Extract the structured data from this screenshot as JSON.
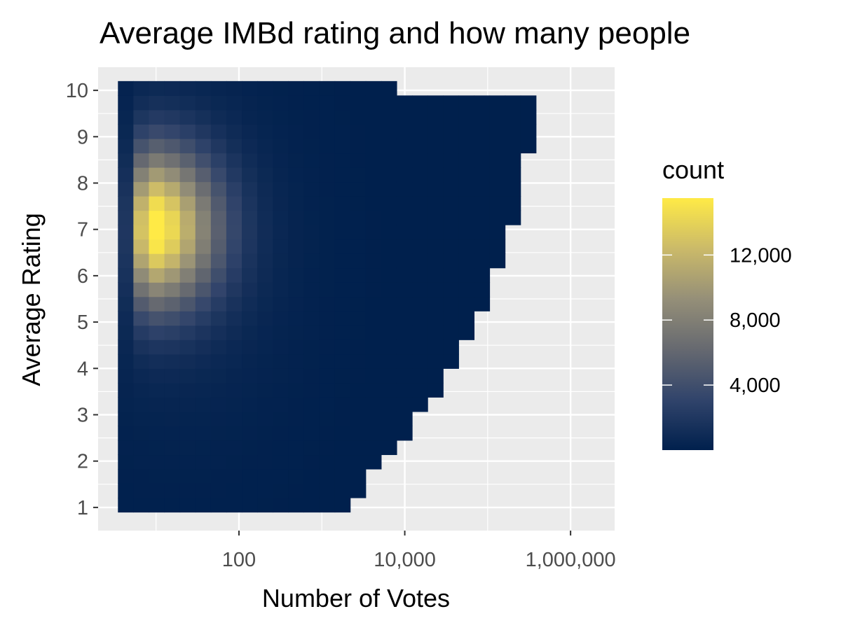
{
  "chart_data": {
    "type": "heatmap",
    "title": "Average IMBd rating and how many people",
    "xlabel": "Number of Votes",
    "ylabel": "Average Rating",
    "x_scale": "log10",
    "xlim": [
      2,
      3400000
    ],
    "ylim": [
      0.5,
      10.5
    ],
    "x_ticks": [
      {
        "value": 100,
        "label": "100"
      },
      {
        "value": 10000,
        "label": "10,000"
      },
      {
        "value": 1000000,
        "label": "1,000,000"
      }
    ],
    "y_ticks": [
      {
        "value": 1,
        "label": "1"
      },
      {
        "value": 2,
        "label": "2"
      },
      {
        "value": 3,
        "label": "3"
      },
      {
        "value": 4,
        "label": "4"
      },
      {
        "value": 5,
        "label": "5"
      },
      {
        "value": 6,
        "label": "6"
      },
      {
        "value": 7,
        "label": "7"
      },
      {
        "value": 8,
        "label": "8"
      },
      {
        "value": 9,
        "label": "9"
      },
      {
        "value": 10,
        "label": "10"
      }
    ],
    "grid": true,
    "bins": {
      "x_count": 31,
      "y_count": 30,
      "x_min_log10": 0.54,
      "x_max_log10": 6.33,
      "y_min": 0.9,
      "y_max": 10.2
    },
    "hotspot": {
      "votes": 8,
      "rating": 7.05,
      "count": 15500
    },
    "legend": {
      "title": "count",
      "position": "right",
      "colors": [
        "#00204d",
        "#31446b",
        "#666970",
        "#958f78",
        "#cbba69",
        "#ffea46"
      ],
      "min": 0,
      "max": 15500,
      "ticks": [
        {
          "value": 4000,
          "label": "4,000"
        },
        {
          "value": 8000,
          "label": "8,000"
        },
        {
          "value": 12000,
          "label": "12,000"
        }
      ]
    }
  }
}
